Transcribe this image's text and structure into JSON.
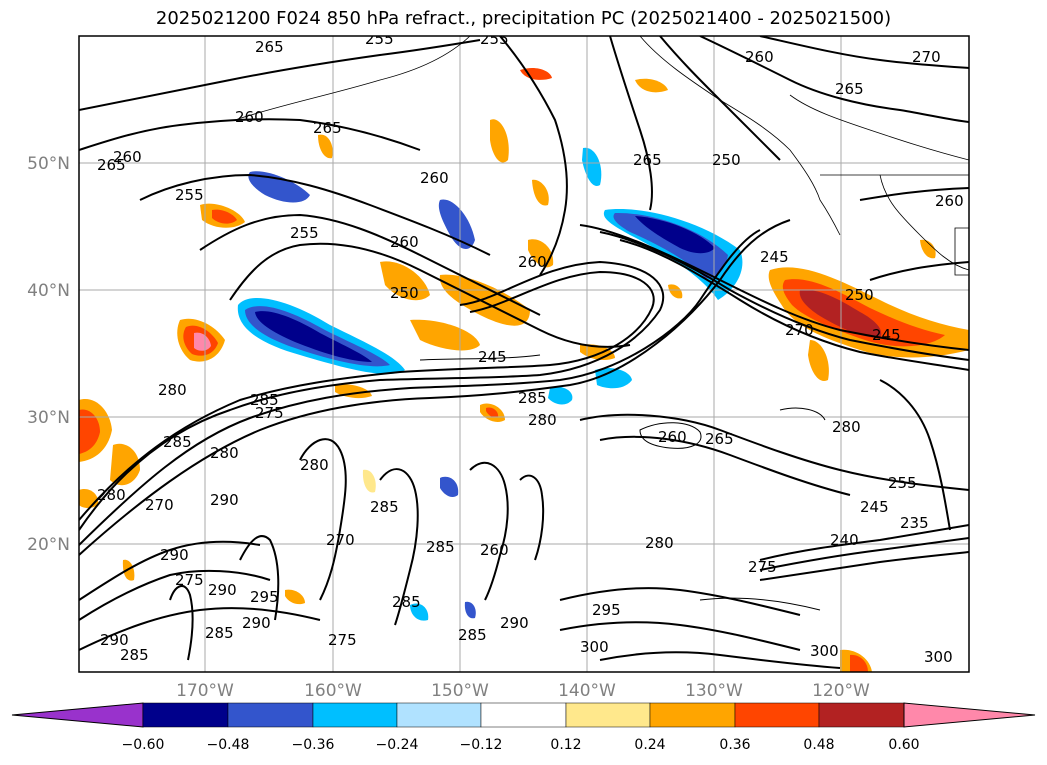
{
  "title": "2025021200 F024 850 hPa refract., precipitation PC (2025021400 - 2025021500)",
  "lat_labels": [
    "50°N",
    "40°N",
    "30°N",
    "20°N"
  ],
  "lon_labels": [
    "170°W",
    "160°W",
    "150°W",
    "140°W",
    "130°W",
    "120°W"
  ],
  "colorbar": {
    "ticks": [
      "−0.60",
      "−0.48",
      "−0.36",
      "−0.24",
      "−0.12",
      "0.12",
      "0.24",
      "0.36",
      "0.48",
      "0.60"
    ],
    "colors": [
      "#9932cc",
      "#00008b",
      "#3355cc",
      "#00bfff",
      "#b0e2ff",
      "#ffffff",
      "#ffe88c",
      "#ffa500",
      "#ff4500",
      "#b22222",
      "#ff88aa"
    ]
  },
  "contour_labels": [
    "265",
    "255",
    "255",
    "260",
    "270",
    "265",
    "260",
    "265",
    "265",
    "260",
    "250",
    "265",
    "255",
    "255",
    "260",
    "250",
    "260",
    "260",
    "245",
    "245",
    "250",
    "270",
    "245",
    "280",
    "285",
    "275",
    "280",
    "285",
    "280",
    "260",
    "265",
    "280",
    "280",
    "285",
    "290",
    "270",
    "285",
    "280",
    "285",
    "260",
    "255",
    "245",
    "235",
    "240",
    "270",
    "275",
    "280",
    "275",
    "290",
    "295",
    "290",
    "285",
    "275",
    "285",
    "285",
    "290",
    "295",
    "300",
    "300",
    "300",
    "290",
    "285",
    "290",
    "260"
  ]
}
